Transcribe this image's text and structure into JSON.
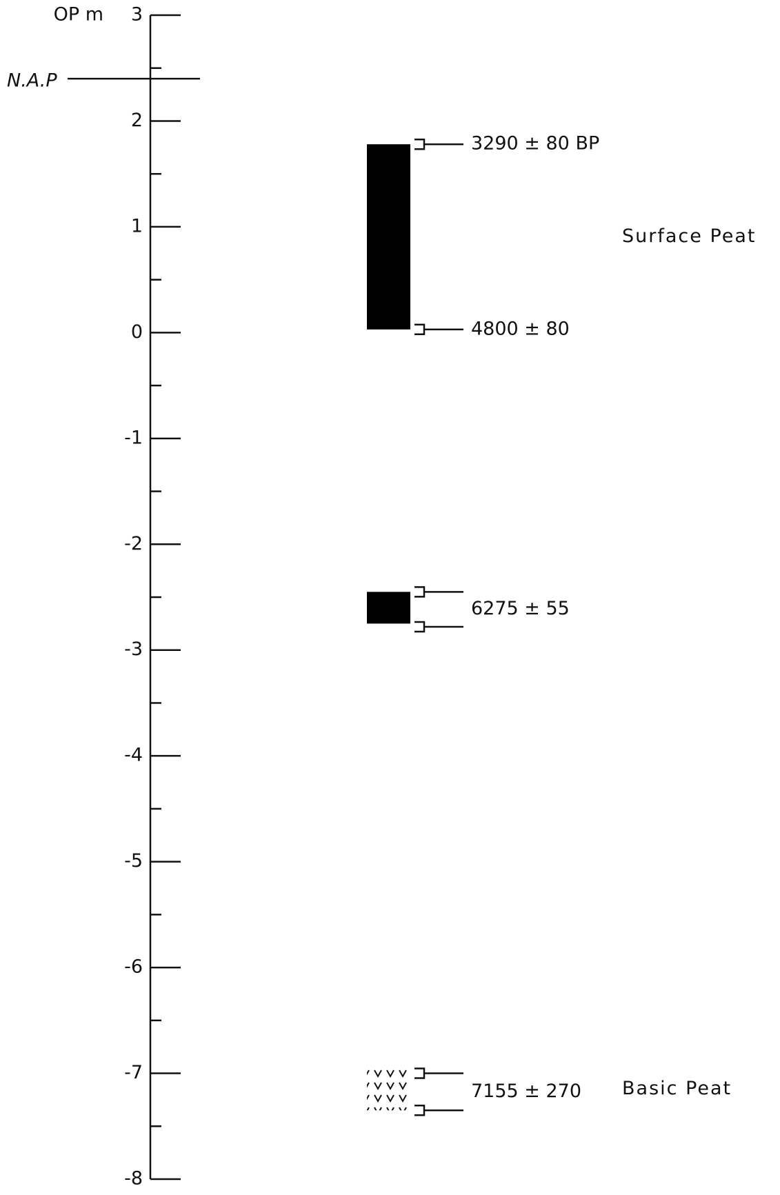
{
  "chart_data": {
    "type": "column",
    "axis_label": "OP m",
    "ylim": [
      -8,
      3
    ],
    "yticks": [
      3,
      2,
      1,
      0,
      -1,
      -2,
      -3,
      -4,
      -5,
      -6,
      -7,
      -8
    ],
    "minor_yticks": [
      2.5,
      1.5,
      0.5,
      -0.5,
      -1.5,
      -2.5,
      -3.5,
      -4.5,
      -5.5,
      -6.5,
      -7.5
    ],
    "reference_line": {
      "label": "N.A.P",
      "value": 2.4
    },
    "color": "#000000",
    "layers": [
      {
        "name": "Surface Peat",
        "top": 1.78,
        "bottom": 0.03,
        "fill": "solid"
      },
      {
        "top": -2.45,
        "bottom": -2.75,
        "fill": "solid"
      },
      {
        "name": "Basic Peat",
        "top": -6.95,
        "bottom": -7.35,
        "fill": "hatched"
      }
    ],
    "dates": [
      {
        "label": "3290 ± 80 BP",
        "depths": [
          1.78
        ]
      },
      {
        "label": "4800 ± 80",
        "depths": [
          0.03
        ]
      },
      {
        "label": "6275 ± 55",
        "depths": [
          -2.45,
          -2.78
        ]
      },
      {
        "label": "7155 ± 270",
        "depths": [
          -7.0,
          -7.35
        ]
      }
    ]
  }
}
